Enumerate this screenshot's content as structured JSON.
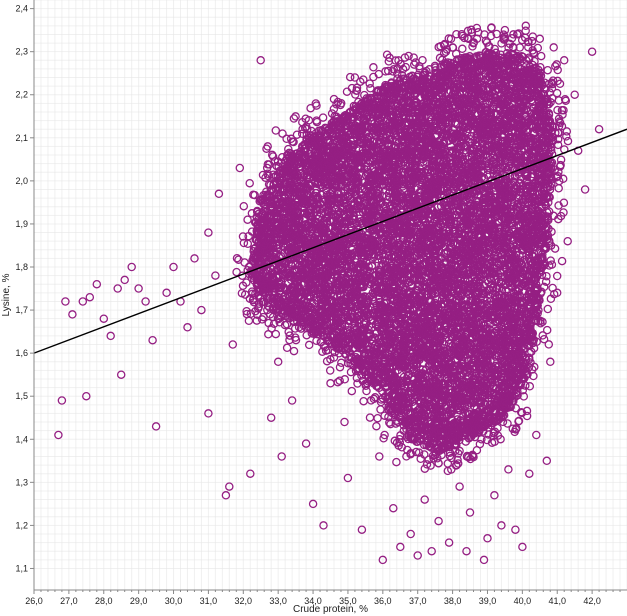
{
  "chart_data": {
    "type": "scatter",
    "xlabel": "Crude protein, %",
    "ylabel": "Lysine, %",
    "xlim": [
      26.0,
      43.0
    ],
    "ylim": [
      1.05,
      2.42
    ],
    "x_ticks": [
      "26,0",
      "27,0",
      "28,0",
      "29,0",
      "30,0",
      "31,0",
      "32,0",
      "33,0",
      "34,0",
      "35,0",
      "36,0",
      "37,0",
      "38,0",
      "39,0",
      "40,0",
      "41,0",
      "42,0"
    ],
    "y_ticks": [
      "1,1",
      "1,2",
      "1,3",
      "1,4",
      "1,5",
      "1,6",
      "1,7",
      "1,8",
      "1,9",
      "2,0",
      "2,1",
      "2,2",
      "2,3",
      "2,4"
    ],
    "grid": true,
    "marker": "open-circle",
    "colors": {
      "points": "#951f83",
      "trend": "#000000"
    },
    "trend_line": {
      "x": [
        26.0,
        43.0
      ],
      "y": [
        1.6,
        2.12
      ]
    },
    "series": [
      {
        "points": [
          [
            26.7,
            1.41
          ],
          [
            26.8,
            1.49
          ],
          [
            27.5,
            1.5
          ],
          [
            28.5,
            1.55
          ],
          [
            26.9,
            1.72
          ],
          [
            27.1,
            1.69
          ],
          [
            27.4,
            1.72
          ],
          [
            27.6,
            1.73
          ],
          [
            27.8,
            1.76
          ],
          [
            28.0,
            1.68
          ],
          [
            28.2,
            1.64
          ],
          [
            28.4,
            1.75
          ],
          [
            28.6,
            1.77
          ],
          [
            28.8,
            1.8
          ],
          [
            29.0,
            1.75
          ],
          [
            29.2,
            1.72
          ],
          [
            29.4,
            1.63
          ],
          [
            29.5,
            1.43
          ],
          [
            29.8,
            1.74
          ],
          [
            30.0,
            1.8
          ],
          [
            30.2,
            1.72
          ],
          [
            30.4,
            1.66
          ],
          [
            30.6,
            1.82
          ],
          [
            30.8,
            1.7
          ],
          [
            31.0,
            1.46
          ],
          [
            31.0,
            1.88
          ],
          [
            31.2,
            1.78
          ],
          [
            31.3,
            1.97
          ],
          [
            31.5,
            1.27
          ],
          [
            31.6,
            1.29
          ],
          [
            31.7,
            1.62
          ],
          [
            31.9,
            2.03
          ],
          [
            32.2,
            1.32
          ],
          [
            32.4,
            1.93
          ],
          [
            32.5,
            2.28
          ],
          [
            32.7,
            2.08
          ],
          [
            32.8,
            1.45
          ],
          [
            33.0,
            1.58
          ],
          [
            33.1,
            1.36
          ],
          [
            33.4,
            1.49
          ],
          [
            33.6,
            1.66
          ],
          [
            33.7,
            2.12
          ],
          [
            33.8,
            1.39
          ],
          [
            34.0,
            1.25
          ],
          [
            34.1,
            2.14
          ],
          [
            34.3,
            1.2
          ],
          [
            34.5,
            1.53
          ],
          [
            34.6,
            2.19
          ],
          [
            34.9,
            1.44
          ],
          [
            35.0,
            1.31
          ],
          [
            35.2,
            2.24
          ],
          [
            35.4,
            1.19
          ],
          [
            35.5,
            1.67
          ],
          [
            35.7,
            2.09
          ],
          [
            35.9,
            1.36
          ],
          [
            36.0,
            1.12
          ],
          [
            36.1,
            2.18
          ],
          [
            36.3,
            1.24
          ],
          [
            36.5,
            1.15
          ],
          [
            36.6,
            1.42
          ],
          [
            36.8,
            1.18
          ],
          [
            36.9,
            2.27
          ],
          [
            37.0,
            1.13
          ],
          [
            37.2,
            1.26
          ],
          [
            37.4,
            1.14
          ],
          [
            37.6,
            1.21
          ],
          [
            37.7,
            1.38
          ],
          [
            37.9,
            1.16
          ],
          [
            38.0,
            2.31
          ],
          [
            38.2,
            1.29
          ],
          [
            38.4,
            1.14
          ],
          [
            38.5,
            1.23
          ],
          [
            38.7,
            2.33
          ],
          [
            38.9,
            1.12
          ],
          [
            39.0,
            1.17
          ],
          [
            39.2,
            1.27
          ],
          [
            39.4,
            1.2
          ],
          [
            39.5,
            2.35
          ],
          [
            39.6,
            1.33
          ],
          [
            39.8,
            1.19
          ],
          [
            40.0,
            1.15
          ],
          [
            40.1,
            2.36
          ],
          [
            40.2,
            1.32
          ],
          [
            40.4,
            1.41
          ],
          [
            40.5,
            2.33
          ],
          [
            40.7,
            1.35
          ],
          [
            40.8,
            1.58
          ],
          [
            40.9,
            2.31
          ],
          [
            41.0,
            1.74
          ],
          [
            41.2,
            2.28
          ],
          [
            41.3,
            1.86
          ],
          [
            41.5,
            2.2
          ],
          [
            41.6,
            2.07
          ],
          [
            41.8,
            1.98
          ],
          [
            42.0,
            2.3
          ],
          [
            42.2,
            2.12
          ]
        ],
        "dense_region": {
          "polygon": [
            [
              32.2,
              1.78
            ],
            [
              32.5,
              1.96
            ],
            [
              33.2,
              2.05
            ],
            [
              34.0,
              2.11
            ],
            [
              35.0,
              2.16
            ],
            [
              36.0,
              2.22
            ],
            [
              37.0,
              2.25
            ],
            [
              38.0,
              2.28
            ],
            [
              39.0,
              2.3
            ],
            [
              40.0,
              2.29
            ],
            [
              40.6,
              2.25
            ],
            [
              40.9,
              2.12
            ],
            [
              40.8,
              1.92
            ],
            [
              40.5,
              1.72
            ],
            [
              40.2,
              1.56
            ],
            [
              39.6,
              1.46
            ],
            [
              38.6,
              1.4
            ],
            [
              37.6,
              1.37
            ],
            [
              36.8,
              1.4
            ],
            [
              36.0,
              1.49
            ],
            [
              35.2,
              1.58
            ],
            [
              34.2,
              1.64
            ],
            [
              33.2,
              1.68
            ],
            [
              32.5,
              1.72
            ]
          ],
          "approx_count": 9500
        }
      }
    ]
  }
}
